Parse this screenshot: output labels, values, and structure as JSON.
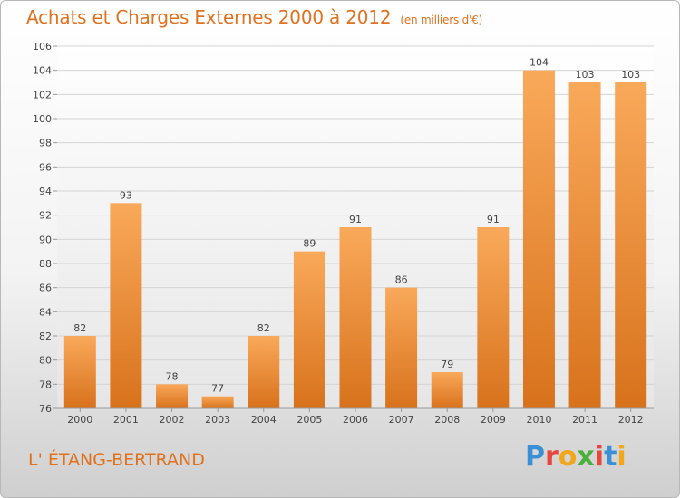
{
  "header": {
    "title": "Achats et Charges Externes 2000 à 2012",
    "subtitle": "(en milliers d'€)"
  },
  "footer": {
    "commune": "L' ÉTANG-BERTRAND",
    "logo_letters": [
      "P",
      "r",
      "o",
      "x",
      "i",
      "t",
      "i"
    ],
    "logo_colors": [
      "#3a8fd6",
      "#e8453c",
      "#f2a71b",
      "#4caf3c",
      "#e8453c",
      "#3a8fd6",
      "#f2a71b"
    ]
  },
  "chart_data": {
    "type": "bar",
    "categories": [
      "2000",
      "2001",
      "2002",
      "2003",
      "2004",
      "2005",
      "2006",
      "2007",
      "2008",
      "2009",
      "2010",
      "2011",
      "2012"
    ],
    "values": [
      82,
      93,
      78,
      77,
      82,
      89,
      91,
      86,
      79,
      91,
      104,
      103,
      103
    ],
    "data_labels": [
      "82",
      "93",
      "78",
      "77",
      "82",
      "89",
      "91",
      "86",
      "79",
      "91",
      "104",
      "103",
      "103"
    ],
    "title": "Achats et Charges Externes 2000 à 2012",
    "xlabel": "",
    "ylabel": "",
    "ylim": [
      76,
      106
    ],
    "yticks": [
      "76",
      "78",
      "80",
      "82",
      "84",
      "86",
      "88",
      "90",
      "92",
      "94",
      "96",
      "98",
      "100",
      "102",
      "104",
      "106"
    ],
    "grid": true,
    "bar_color_top": "#f9a95a",
    "bar_color_bottom": "#d8721c"
  }
}
